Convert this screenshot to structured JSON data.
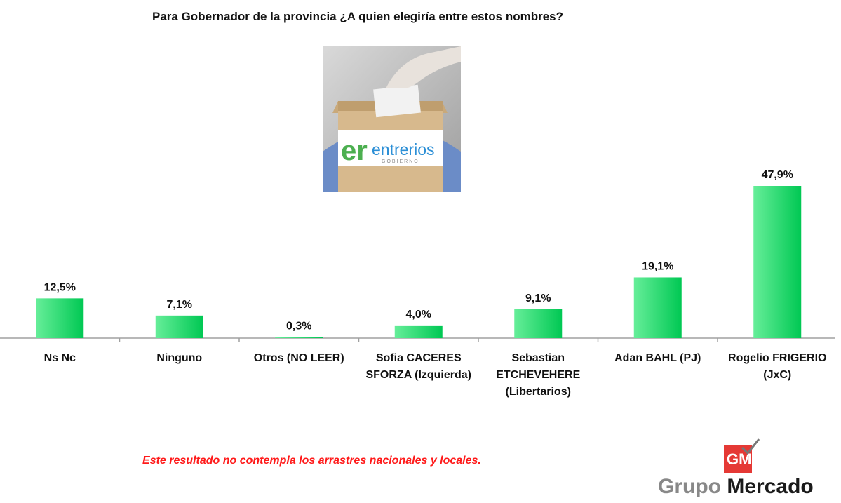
{
  "title": "Para Gobernador de la provincia ¿A quien elegiría entre estos nombres?",
  "note": "Este resultado no contempla los arrastres nacionales y locales.",
  "branding": {
    "logo_letters": "GM",
    "brand_word1": "Grupo",
    "brand_word2": "Mercado"
  },
  "image": {
    "logo_letters": "er",
    "logo_word": "entrerios",
    "logo_sub": "GOBIERNO"
  },
  "colors": {
    "bar_light": "#66ee99",
    "bar_dark": "#00c853",
    "note": "#ff1a1a",
    "logo_red": "#e53935"
  },
  "chart_data": {
    "type": "bar",
    "title": "Para Gobernador de la provincia ¿A quien elegiría entre estos nombres?",
    "categories": [
      [
        "Ns Nc"
      ],
      [
        "Ninguno"
      ],
      [
        "Otros (NO LEER)"
      ],
      [
        "Sofia CACERES",
        "SFORZA (Izquierda)"
      ],
      [
        "Sebastian",
        "ETCHEVEHERE",
        "(Libertarios)"
      ],
      [
        "Adan BAHL (PJ)"
      ],
      [
        "Rogelio FRIGERIO",
        "(JxC)"
      ]
    ],
    "values": [
      12.5,
      7.1,
      0.3,
      4.0,
      9.1,
      19.1,
      47.9
    ],
    "value_labels": [
      "12,5%",
      "7,1%",
      "0,3%",
      "4,0%",
      "9,1%",
      "19,1%",
      "47,9%"
    ],
    "ylim": [
      0,
      50
    ],
    "grid": false,
    "legend": "none"
  }
}
